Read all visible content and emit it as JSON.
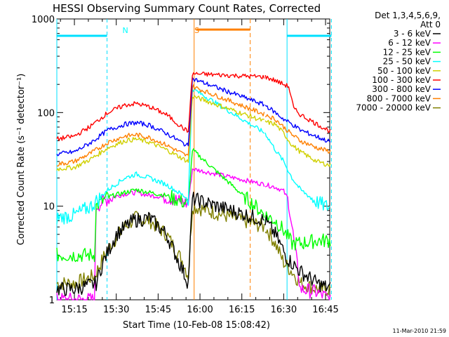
{
  "chart_data": {
    "type": "line",
    "title": "HESSI Observing Summary Count Rates, Corrected",
    "xlabel": "Start Time (10-Feb-08 15:08:42)",
    "ylabel": "Corrected Count Rate (s⁻¹ detector⁻¹)",
    "y_scale": "log",
    "ylim": [
      1,
      1000
    ],
    "xlim": [
      "15:08:42",
      "16:46:30"
    ],
    "grid": false,
    "legend_placement": "right",
    "x_tick_labels": [
      "15:15",
      "15:30",
      "15:45",
      "16:00",
      "16:15",
      "16:30",
      "16:45"
    ],
    "x_ticks_min": [
      15.25,
      15.5,
      15.75,
      16.0,
      16.25,
      16.5,
      16.75
    ],
    "y_tick_labels": [
      "1",
      "10",
      "100",
      "1000"
    ],
    "y_ticks": [
      1,
      10,
      100,
      1000
    ],
    "legend_header": [
      "Det 1,3,4,5,6,9,",
      "Att 0"
    ],
    "annotations": [
      {
        "text": "N",
        "x_h": 15.52,
        "color": "#00ffff"
      },
      {
        "text": "S",
        "x_h": 15.95,
        "color": "#ff8000"
      }
    ],
    "night_intervals": [
      {
        "start_h": 15.145,
        "end_h": 15.445,
        "color": "#00e0ff",
        "label": "N"
      },
      {
        "start_h": 16.52,
        "end_h": 16.785,
        "color": "#00e0ff"
      }
    ],
    "saa_interval": {
      "start_h": 15.965,
      "end_h": 16.3,
      "color": "#ff8000",
      "label": "S"
    },
    "gaps": [
      [
        15.965,
        16.385
      ]
    ],
    "series": [
      {
        "name": "3 - 6 keV",
        "color": "#000000",
        "x": [
          15.145,
          15.25,
          15.38,
          15.42,
          15.5,
          15.6,
          15.7,
          15.8,
          15.9,
          15.93,
          15.955,
          16.39,
          16.45,
          16.52,
          16.6,
          16.7,
          16.785
        ],
        "y": [
          1.3,
          1.3,
          1.5,
          2.5,
          5,
          7,
          7.5,
          5,
          2,
          1.5,
          12,
          7,
          5,
          2.8,
          2,
          1.5,
          1.3
        ]
      },
      {
        "name": "6 - 12 keV",
        "color": "#ff00ff",
        "x": [
          15.145,
          15.25,
          15.37,
          15.38,
          15.45,
          15.55,
          15.62,
          15.7,
          15.8,
          15.9,
          15.93,
          15.955,
          16.39,
          16.45,
          16.5,
          16.53,
          16.6,
          16.7,
          16.785
        ],
        "y": [
          1.0,
          1.0,
          1.0,
          10,
          12,
          13.5,
          14,
          13,
          12.5,
          11,
          10.5,
          25,
          17,
          16,
          14.5,
          11,
          1.3,
          1.2,
          1.0
        ]
      },
      {
        "name": "12 - 25 keV",
        "color": "#00ff00",
        "x": [
          15.145,
          15.25,
          15.37,
          15.38,
          15.45,
          15.55,
          15.62,
          15.7,
          15.8,
          15.9,
          15.93,
          15.955,
          16.39,
          16.45,
          16.5,
          16.55,
          16.6,
          16.7,
          16.785
        ],
        "y": [
          3.0,
          3.0,
          3.0,
          10,
          12.5,
          14,
          15,
          14,
          13,
          11,
          10.5,
          40,
          8,
          7,
          5.5,
          4,
          4,
          4.3,
          4.3
        ]
      },
      {
        "name": "25 - 50 keV",
        "color": "#00ffff",
        "x": [
          15.145,
          15.25,
          15.35,
          15.45,
          15.55,
          15.62,
          15.7,
          15.8,
          15.9,
          15.93,
          15.955,
          16.39,
          16.45,
          16.5,
          16.55,
          16.6,
          16.7,
          16.785
        ],
        "y": [
          7.5,
          8,
          10,
          15,
          20,
          22,
          20,
          17,
          13,
          12,
          180,
          60,
          40,
          30,
          20,
          15,
          11,
          9.5
        ]
      },
      {
        "name": "50 - 100 keV",
        "color": "#d0d000",
        "x": [
          15.145,
          15.25,
          15.35,
          15.45,
          15.55,
          15.62,
          15.7,
          15.8,
          15.9,
          15.93,
          15.955,
          16.39,
          16.45,
          16.5,
          16.55,
          16.6,
          16.7,
          16.785
        ],
        "y": [
          25,
          26,
          32,
          42,
          50,
          52,
          48,
          40,
          32,
          30,
          150,
          80,
          75,
          60,
          45,
          38,
          30,
          27
        ]
      },
      {
        "name": "100 - 300 keV",
        "color": "#ff0000",
        "x": [
          15.145,
          15.25,
          15.35,
          15.45,
          15.55,
          15.62,
          15.7,
          15.8,
          15.9,
          15.93,
          15.955,
          16.39,
          16.45,
          16.5,
          16.53,
          16.56,
          16.6,
          16.7,
          16.785
        ],
        "y": [
          52,
          56,
          72,
          100,
          120,
          125,
          115,
          95,
          68,
          62,
          260,
          240,
          220,
          200,
          190,
          110,
          95,
          75,
          62
        ]
      },
      {
        "name": "300 - 800 keV",
        "color": "#0000ff",
        "x": [
          15.145,
          15.25,
          15.35,
          15.45,
          15.55,
          15.62,
          15.7,
          15.8,
          15.9,
          15.93,
          15.955,
          16.39,
          16.45,
          16.5,
          16.55,
          16.6,
          16.7,
          16.785
        ],
        "y": [
          36,
          38,
          48,
          65,
          75,
          78,
          73,
          60,
          47,
          44,
          230,
          120,
          100,
          85,
          75,
          65,
          55,
          48
        ]
      },
      {
        "name": "800 - 7000 keV",
        "color": "#ff8000",
        "x": [
          15.145,
          15.25,
          15.35,
          15.45,
          15.55,
          15.62,
          15.7,
          15.8,
          15.9,
          15.93,
          15.955,
          16.39,
          16.45,
          16.5,
          16.55,
          16.6,
          16.7,
          16.785
        ],
        "y": [
          28,
          30,
          37,
          48,
          56,
          58,
          54,
          45,
          36,
          34,
          190,
          95,
          85,
          70,
          58,
          50,
          42,
          38
        ]
      },
      {
        "name": "7000 - 20000 keV",
        "color": "#808000",
        "x": [
          15.145,
          15.25,
          15.37,
          15.45,
          15.55,
          15.62,
          15.7,
          15.8,
          15.9,
          15.93,
          15.955,
          16.39,
          16.45,
          16.5,
          16.55,
          16.6,
          16.7,
          16.785
        ],
        "y": [
          1.5,
          1.5,
          1.8,
          3.5,
          6,
          7.5,
          7,
          5,
          2.5,
          1.8,
          10,
          6,
          4,
          2.5,
          2,
          1.5,
          1.3,
          1.3
        ]
      }
    ]
  },
  "footer": {
    "timestamp": "11-Mar-2010 21:59"
  }
}
